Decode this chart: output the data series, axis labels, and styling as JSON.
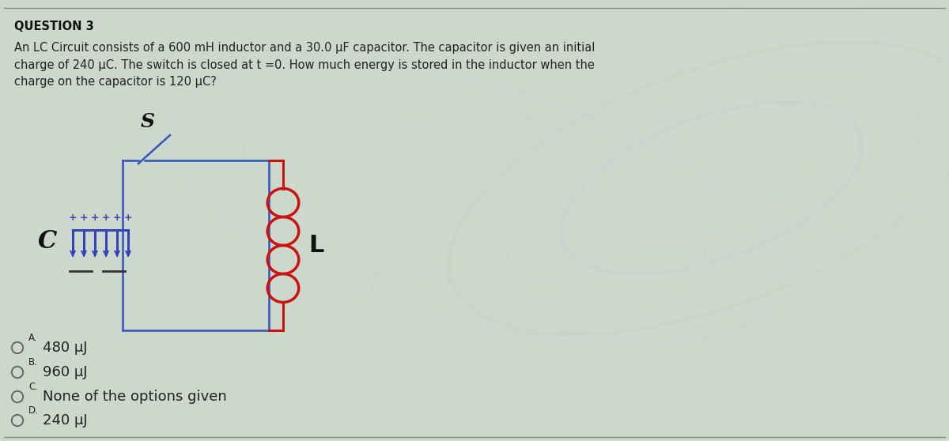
{
  "title": "QUESTION 3",
  "question_text": "An LC Circuit consists of a 600 mH inductor and a 30.0 μF capacitor. The capacitor is given an initial\ncharge of 240 μC. The switch is closed at t =0. How much energy is stored in the inductor when the\ncharge on the capacitor is 120 μC?",
  "options": [
    {
      "label": "A.",
      "text": "480 μJ"
    },
    {
      "label": "B.",
      "text": "960 μJ"
    },
    {
      "label": "C.",
      "text": "None of the options given"
    },
    {
      "label": "D.",
      "text": "240 μJ"
    }
  ],
  "bg_swirl_colors": [
    "#c8d8e8",
    "#d0e8d0",
    "#e8e0c8",
    "#c8e0d8"
  ],
  "text_color": "#222222",
  "title_color": "#111111",
  "circuit_color": "#3355bb",
  "coil_color": "#cc1111",
  "cap_color": "#3344bb",
  "cap_plus_color": "#333399",
  "cap_minus_color": "#333333",
  "switch_color": "#3355bb"
}
